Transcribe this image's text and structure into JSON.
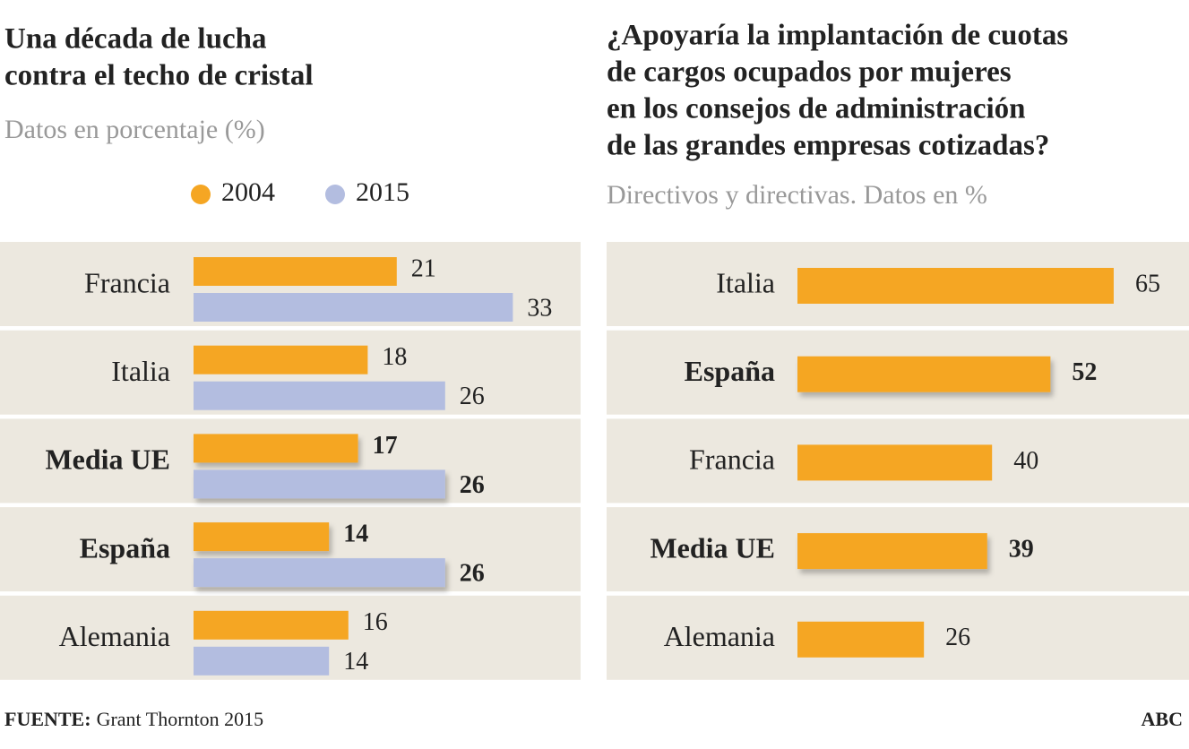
{
  "chart_data": [
    {
      "type": "bar",
      "orientation": "horizontal",
      "title": [
        "Una década de lucha",
        "contra el techo de cristal"
      ],
      "subtitle": "Datos en porcentaje (%)",
      "categories": [
        "Francia",
        "Italia",
        "Media UE",
        "España",
        "Alemania"
      ],
      "highlight": [
        2,
        3
      ],
      "legend": true,
      "series": [
        {
          "name": "2004",
          "color": "#f5a623",
          "values": [
            21,
            18,
            17,
            14,
            16
          ]
        },
        {
          "name": "2015",
          "color": "#b3bde0",
          "values": [
            33,
            26,
            26,
            26,
            14
          ]
        }
      ]
    },
    {
      "type": "bar",
      "orientation": "horizontal",
      "title": [
        "¿Apoyaría la implantación de cuotas",
        "de cargos ocupados por mujeres",
        "en los consejos de administración",
        "de las grandes empresas cotizadas?"
      ],
      "subtitle": "Directivos y directivas. Datos en %",
      "categories": [
        "Italia",
        "España",
        "Francia",
        "Media UE",
        "Alemania"
      ],
      "highlight": [
        1,
        3
      ],
      "legend": false,
      "series": [
        {
          "name": null,
          "color": "#f5a623",
          "values": [
            65,
            52,
            40,
            39,
            26
          ]
        }
      ]
    }
  ],
  "footer": {
    "source_label": "FUENTE:",
    "source": "Grant Thornton 2015",
    "credit": "ABC"
  }
}
